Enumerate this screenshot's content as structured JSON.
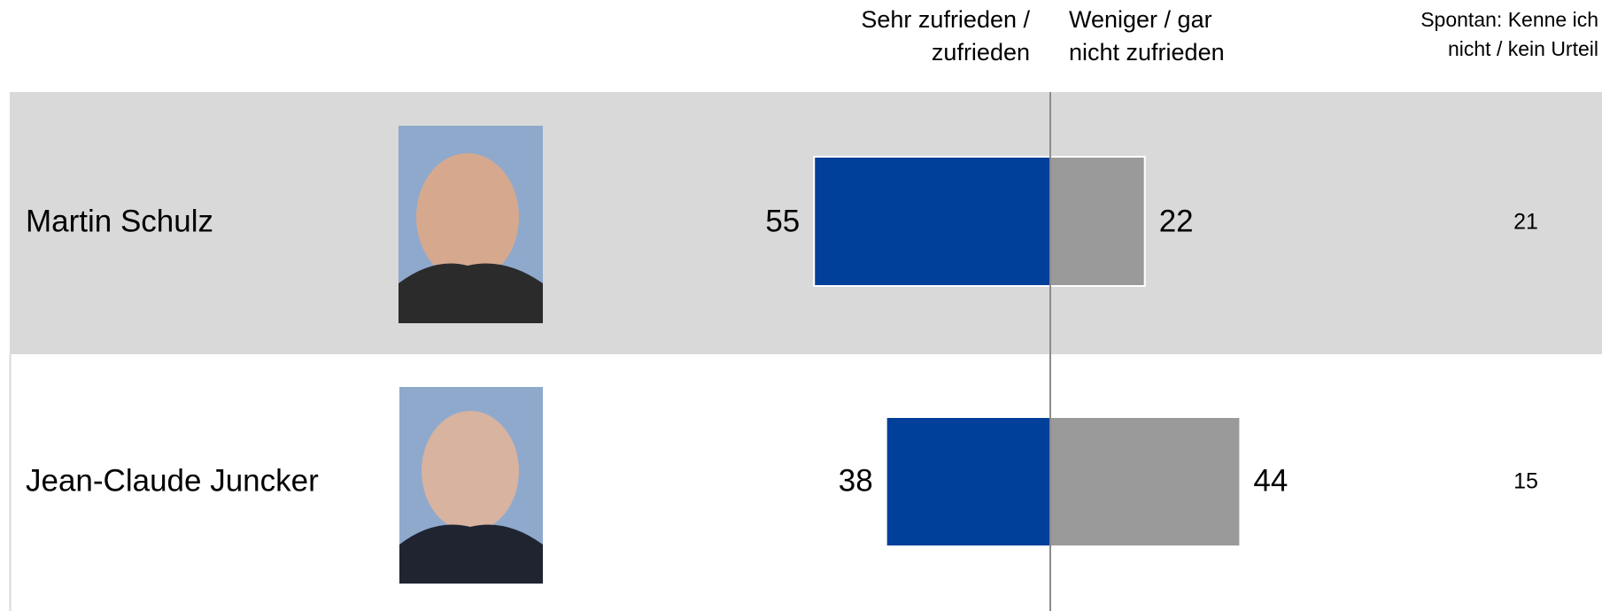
{
  "chart_data": {
    "type": "diverging_bar",
    "categories": [
      "Martin Schulz",
      "Jean-Claude Juncker"
    ],
    "series": [
      {
        "name": "Sehr zufrieden / zufrieden",
        "color": "#003f9a",
        "values": [
          55,
          38
        ]
      },
      {
        "name": "Weniger / gar nicht zufrieden",
        "color": "#9a9a9a",
        "values": [
          22,
          44
        ]
      },
      {
        "name": "Spontan: Kenne ich nicht / kein Urteil",
        "values": [
          21,
          15
        ]
      }
    ]
  }
}
